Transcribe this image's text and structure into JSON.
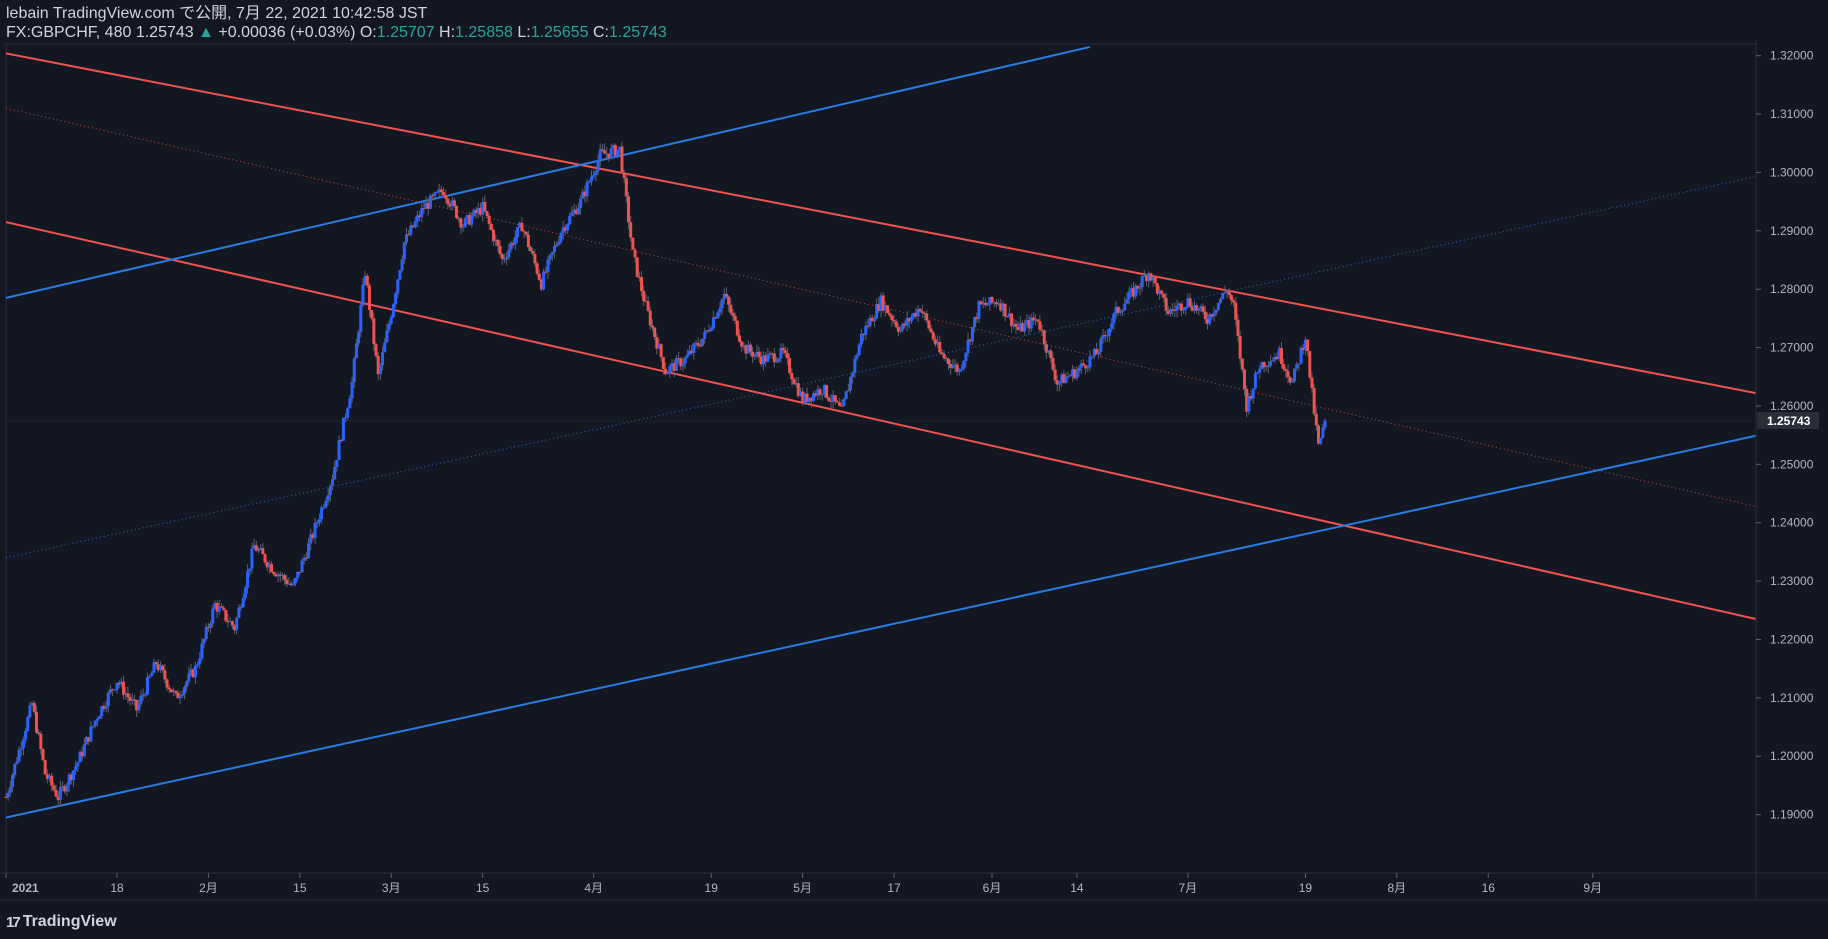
{
  "header": {
    "published": "lebain TradingView.com で公開, 7月 22, 2021 10:42:58 JST",
    "symbol_line": "FX:GBPCHF, 480 1.25743",
    "change": "+0.00036 (+0.03%)",
    "o_label": "O:",
    "o_value": "1.25707",
    "h_label": "H:",
    "h_value": "1.25858",
    "l_label": "L:",
    "l_value": "1.25655",
    "c_label": "C:",
    "c_value": "1.25743"
  },
  "footer": {
    "logo_text": "TradingView",
    "logo_mark": "17"
  },
  "colors": {
    "background": "#131722",
    "up": "#2962ff",
    "down": "#ef5350",
    "blue_line": "#2a7be4",
    "red_line": "#f0534f",
    "axis_text": "#b2b5be",
    "current_tag": "#2a2e39"
  },
  "chart_data": {
    "type": "candlestick",
    "symbol": "FX:GBPCHF",
    "interval": "480",
    "ylim": [
      1.18,
      1.322
    ],
    "y_ticks": [
      "1.32000",
      "1.31000",
      "1.30000",
      "1.29000",
      "1.28000",
      "1.27000",
      "1.26000",
      "1.25000",
      "1.24000",
      "1.23000",
      "1.22000",
      "1.21000",
      "1.20000",
      "1.19000"
    ],
    "x_ticks": [
      "2021",
      "18",
      "2月",
      "15",
      "3月",
      "15",
      "4月",
      "19",
      "5月",
      "17",
      "6月",
      "14",
      "7月",
      "19",
      "8月",
      "16",
      "9月"
    ],
    "current_price": "1.25743",
    "price_path": [
      [
        "2021-01-01",
        1.193
      ],
      [
        "2021-01-03",
        1.201
      ],
      [
        "2021-01-05",
        1.209
      ],
      [
        "2021-01-07",
        1.197
      ],
      [
        "2021-01-09",
        1.193
      ],
      [
        "2021-01-12",
        1.199
      ],
      [
        "2021-01-15",
        1.207
      ],
      [
        "2021-01-18",
        1.213
      ],
      [
        "2021-01-21",
        1.208
      ],
      [
        "2021-01-24",
        1.216
      ],
      [
        "2021-01-27",
        1.21
      ],
      [
        "2021-01-30",
        1.215
      ],
      [
        "2021-02-02",
        1.226
      ],
      [
        "2021-02-05",
        1.222
      ],
      [
        "2021-02-08",
        1.236
      ],
      [
        "2021-02-11",
        1.232
      ],
      [
        "2021-02-14",
        1.229
      ],
      [
        "2021-02-17",
        1.238
      ],
      [
        "2021-02-20",
        1.248
      ],
      [
        "2021-02-23",
        1.264
      ],
      [
        "2021-02-25",
        1.283
      ],
      [
        "2021-02-27",
        1.265
      ],
      [
        "2021-03-01",
        1.276
      ],
      [
        "2021-03-03",
        1.288
      ],
      [
        "2021-03-06",
        1.294
      ],
      [
        "2021-03-09",
        1.297
      ],
      [
        "2021-03-12",
        1.291
      ],
      [
        "2021-03-15",
        1.294
      ],
      [
        "2021-03-18",
        1.285
      ],
      [
        "2021-03-21",
        1.291
      ],
      [
        "2021-03-24",
        1.281
      ],
      [
        "2021-03-27",
        1.29
      ],
      [
        "2021-03-30",
        1.295
      ],
      [
        "2021-04-02",
        1.303
      ],
      [
        "2021-04-05",
        1.304
      ],
      [
        "2021-04-07",
        1.286
      ],
      [
        "2021-04-09",
        1.277
      ],
      [
        "2021-04-12",
        1.266
      ],
      [
        "2021-04-15",
        1.268
      ],
      [
        "2021-04-18",
        1.272
      ],
      [
        "2021-04-21",
        1.279
      ],
      [
        "2021-04-24",
        1.27
      ],
      [
        "2021-04-27",
        1.268
      ],
      [
        "2021-04-30",
        1.269
      ],
      [
        "2021-05-03",
        1.261
      ],
      [
        "2021-05-06",
        1.263
      ],
      [
        "2021-05-09",
        1.259
      ],
      [
        "2021-05-12",
        1.272
      ],
      [
        "2021-05-15",
        1.278
      ],
      [
        "2021-05-18",
        1.273
      ],
      [
        "2021-05-21",
        1.277
      ],
      [
        "2021-05-24",
        1.269
      ],
      [
        "2021-05-27",
        1.266
      ],
      [
        "2021-05-30",
        1.277
      ],
      [
        "2021-06-02",
        1.278
      ],
      [
        "2021-06-05",
        1.273
      ],
      [
        "2021-06-08",
        1.275
      ],
      [
        "2021-06-11",
        1.264
      ],
      [
        "2021-06-14",
        1.266
      ],
      [
        "2021-06-17",
        1.269
      ],
      [
        "2021-06-20",
        1.276
      ],
      [
        "2021-06-23",
        1.28
      ],
      [
        "2021-06-25",
        1.283
      ],
      [
        "2021-06-28",
        1.276
      ],
      [
        "2021-07-01",
        1.278
      ],
      [
        "2021-07-04",
        1.275
      ],
      [
        "2021-07-07",
        1.28
      ],
      [
        "2021-07-08",
        1.277
      ],
      [
        "2021-07-10",
        1.26
      ],
      [
        "2021-07-12",
        1.267
      ],
      [
        "2021-07-15",
        1.269
      ],
      [
        "2021-07-17",
        1.264
      ],
      [
        "2021-07-19",
        1.272
      ],
      [
        "2021-07-20",
        1.262
      ],
      [
        "2021-07-21",
        1.253
      ],
      [
        "2021-07-22",
        1.257
      ]
    ],
    "trend_lines": [
      {
        "color": "red",
        "style": "solid",
        "from": [
          "2020-12-20",
          1.323
        ],
        "to": [
          "2021-09-26",
          1.2622
        ]
      },
      {
        "color": "red",
        "style": "solid",
        "from": [
          "2021-01-01",
          1.2915
        ],
        "to": [
          "2021-09-26",
          1.2235
        ]
      },
      {
        "color": "red",
        "style": "dotted",
        "from": [
          "2021-01-01",
          1.311
        ],
        "to": [
          "2021-09-26",
          1.2428
        ]
      },
      {
        "color": "blue",
        "style": "solid",
        "from": [
          "2021-01-01",
          1.2785
        ],
        "to": [
          "2021-06-16",
          1.3215
        ]
      },
      {
        "color": "blue",
        "style": "solid",
        "from": [
          "2021-01-01",
          1.1895
        ],
        "to": [
          "2021-09-26",
          1.2549
        ]
      },
      {
        "color": "blue",
        "style": "dotted",
        "from": [
          "2021-01-01",
          1.234
        ],
        "to": [
          "2021-09-26",
          1.2993
        ]
      }
    ]
  }
}
